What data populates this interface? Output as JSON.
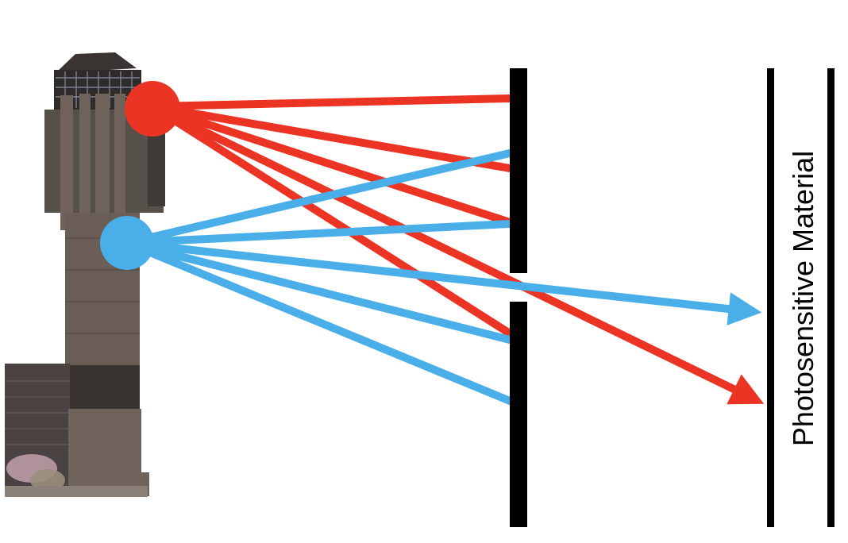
{
  "diagram": {
    "label": "Photosensitive Material",
    "colors": {
      "red": "#ec3425",
      "blue": "#4aaee8",
      "barrier": "#000000",
      "building_dark": "#3a3532",
      "building_mid": "#5b504a",
      "building_light": "#6e625a"
    },
    "object": "building-photo",
    "red_rays": 5,
    "blue_rays": 5,
    "rays_through_pinhole": {
      "red": 1,
      "blue": 1
    }
  }
}
